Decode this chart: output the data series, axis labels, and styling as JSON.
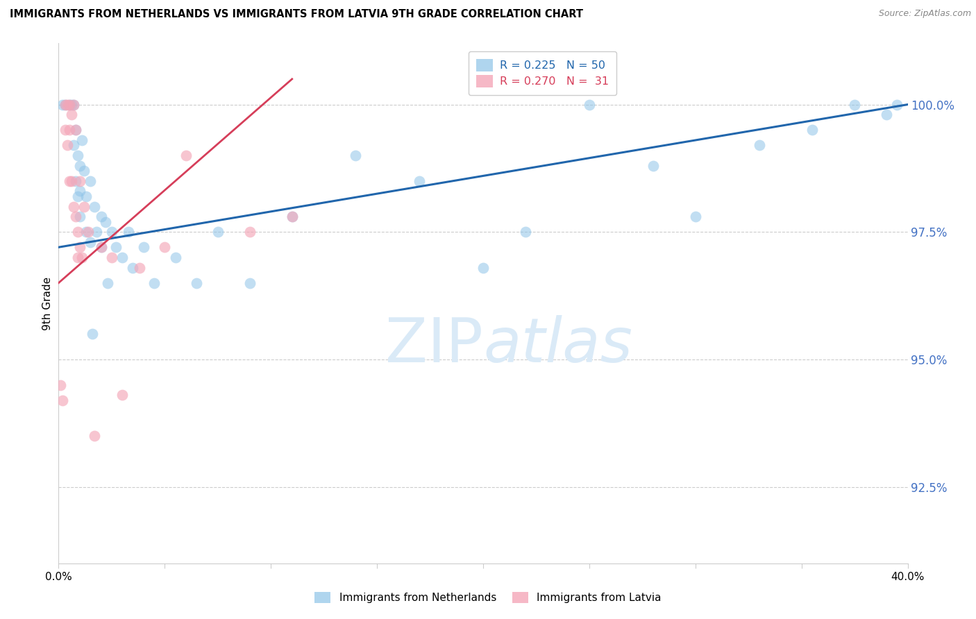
{
  "title": "IMMIGRANTS FROM NETHERLANDS VS IMMIGRANTS FROM LATVIA 9TH GRADE CORRELATION CHART",
  "source": "Source: ZipAtlas.com",
  "ylabel": "9th Grade",
  "yticks": [
    92.5,
    95.0,
    97.5,
    100.0
  ],
  "ytick_labels": [
    "92.5%",
    "95.0%",
    "97.5%",
    "100.0%"
  ],
  "xlim": [
    0.0,
    40.0
  ],
  "ylim": [
    91.0,
    101.2
  ],
  "legend_blue_r": "0.225",
  "legend_blue_n": "50",
  "legend_pink_r": "0.270",
  "legend_pink_n": "31",
  "legend_label_blue": "Immigrants from Netherlands",
  "legend_label_pink": "Immigrants from Latvia",
  "blue_color": "#8ec4e8",
  "pink_color": "#f4a6b8",
  "blue_line_color": "#2166ac",
  "pink_line_color": "#d63e5a",
  "background_color": "#ffffff",
  "watermark_color": "#daeaf7",
  "blue_x": [
    0.2,
    0.3,
    0.5,
    0.6,
    0.7,
    0.7,
    0.8,
    0.8,
    0.9,
    0.9,
    1.0,
    1.0,
    1.0,
    1.1,
    1.2,
    1.3,
    1.3,
    1.5,
    1.5,
    1.7,
    1.8,
    2.0,
    2.0,
    2.2,
    2.5,
    2.7,
    3.0,
    3.3,
    3.5,
    4.0,
    4.5,
    5.5,
    6.5,
    7.5,
    9.0,
    11.0,
    14.0,
    17.0,
    22.0,
    28.0,
    33.0,
    35.5,
    37.5,
    39.0,
    39.5,
    20.0,
    30.0,
    25.0,
    2.3,
    1.6
  ],
  "blue_y": [
    100.0,
    100.0,
    100.0,
    100.0,
    100.0,
    99.2,
    99.5,
    98.5,
    99.0,
    98.2,
    98.8,
    98.3,
    97.8,
    99.3,
    98.7,
    98.2,
    97.5,
    98.5,
    97.3,
    98.0,
    97.5,
    97.8,
    97.2,
    97.7,
    97.5,
    97.2,
    97.0,
    97.5,
    96.8,
    97.2,
    96.5,
    97.0,
    96.5,
    97.5,
    96.5,
    97.8,
    99.0,
    98.5,
    97.5,
    98.8,
    99.2,
    99.5,
    100.0,
    99.8,
    100.0,
    96.8,
    97.8,
    100.0,
    96.5,
    95.5
  ],
  "pink_x": [
    0.1,
    0.2,
    0.3,
    0.3,
    0.4,
    0.4,
    0.5,
    0.5,
    0.5,
    0.6,
    0.6,
    0.7,
    0.7,
    0.8,
    0.8,
    0.9,
    0.9,
    1.0,
    1.0,
    1.1,
    1.2,
    1.4,
    1.7,
    2.0,
    2.5,
    3.0,
    3.8,
    5.0,
    6.0,
    9.0,
    11.0
  ],
  "pink_y": [
    94.5,
    94.2,
    100.0,
    99.5,
    100.0,
    99.2,
    100.0,
    99.5,
    98.5,
    99.8,
    98.5,
    100.0,
    98.0,
    99.5,
    97.8,
    97.5,
    97.0,
    98.5,
    97.2,
    97.0,
    98.0,
    97.5,
    93.5,
    97.2,
    97.0,
    94.3,
    96.8,
    97.2,
    99.0,
    97.5,
    97.8
  ],
  "blue_trendline_x": [
    0.0,
    40.0
  ],
  "blue_trendline_y": [
    97.2,
    100.0
  ],
  "pink_trendline_x": [
    0.0,
    11.0
  ],
  "pink_trendline_y": [
    96.5,
    100.5
  ]
}
